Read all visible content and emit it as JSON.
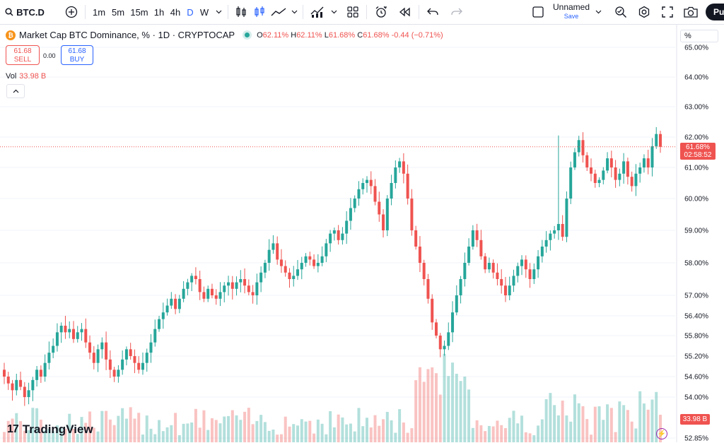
{
  "toolbar": {
    "symbol": "BTC.D",
    "intervals": [
      "1m",
      "5m",
      "15m",
      "1h",
      "4h",
      "D",
      "W"
    ],
    "active_interval": "D",
    "layout_name": "Unnamed",
    "layout_save": "Save",
    "publish_label": "Pul"
  },
  "legend": {
    "title": "Market Cap BTC Dominance, % · 1D · CRYPTOCAP",
    "open_label": "O",
    "open": "62.11%",
    "high_label": "H",
    "high": "62.11%",
    "low_label": "L",
    "low": "61.68%",
    "close_label": "C",
    "close": "61.68%",
    "change": "-0.44 (−0.71%)"
  },
  "trade": {
    "sell_price": "61.68",
    "sell_label": "SELL",
    "spread": "0.00",
    "buy_price": "61.68",
    "buy_label": "BUY"
  },
  "volume": {
    "label": "Vol",
    "value": "33.98 B"
  },
  "price_scale": {
    "mode": "%",
    "ticks": [
      "65.00%",
      "64.00%",
      "63.00%",
      "62.00%",
      "61.00%",
      "60.00%",
      "59.00%",
      "58.00%",
      "57.00%",
      "56.40%",
      "55.80%",
      "55.20%",
      "54.60%",
      "54.00%",
      "52.85%"
    ],
    "last_price": "61.68%",
    "countdown": "02:58:52"
  },
  "brand": "TradingView",
  "colors": {
    "up": "#26a69a",
    "down": "#ef5350",
    "accent": "#2962ff"
  },
  "chart_data": {
    "type": "candlestick",
    "symbol": "BTC.D",
    "timeframe": "1D",
    "last": 61.68,
    "close_series": [
      54.6,
      54.4,
      54.2,
      54.5,
      54.3,
      54.0,
      54.2,
      54.5,
      54.8,
      54.6,
      55.0,
      55.3,
      55.5,
      55.9,
      56.1,
      55.9,
      56.0,
      55.7,
      55.9,
      56.0,
      55.6,
      55.3,
      55.0,
      55.4,
      55.6,
      55.1,
      54.8,
      54.6,
      54.8,
      55.1,
      55.4,
      55.2,
      55.0,
      54.8,
      55.0,
      55.3,
      55.6,
      56.0,
      56.3,
      56.5,
      56.7,
      56.9,
      56.6,
      56.9,
      57.2,
      57.4,
      57.6,
      57.5,
      57.1,
      56.9,
      57.2,
      57.0,
      56.9,
      57.1,
      57.3,
      57.4,
      57.2,
      57.4,
      57.5,
      57.3,
      57.1,
      57.0,
      57.4,
      57.7,
      58.0,
      58.4,
      58.6,
      58.1,
      57.9,
      57.7,
      57.5,
      57.6,
      57.8,
      58.0,
      58.2,
      58.1,
      57.9,
      58.0,
      58.2,
      58.6,
      58.9,
      59.0,
      58.7,
      58.9,
      59.3,
      59.7,
      60.0,
      60.3,
      60.5,
      60.6,
      60.4,
      59.9,
      59.5,
      59.0,
      60.0,
      60.5,
      61.0,
      61.2,
      60.8,
      60.0,
      59.0,
      58.5,
      58.0,
      57.5,
      56.9,
      56.2,
      55.8,
      55.4,
      55.5,
      55.9,
      56.5,
      57.0,
      57.5,
      58.0,
      58.5,
      59.0,
      58.7,
      58.2,
      57.8,
      58.0,
      57.7,
      57.5,
      57.3,
      57.0,
      57.3,
      57.6,
      57.9,
      58.1,
      57.8,
      57.5,
      57.8,
      58.2,
      58.5,
      58.7,
      58.9,
      59.0,
      59.2,
      58.8,
      60.0,
      61.0,
      61.5,
      61.9,
      61.4,
      61.0,
      60.8,
      60.5,
      60.6,
      60.9,
      61.3,
      61.0,
      60.6,
      60.8,
      61.2,
      60.7,
      60.4,
      60.8,
      61.0,
      61.3,
      61.0,
      61.7,
      62.1,
      61.68
    ],
    "price_range": [
      52.85,
      65.0
    ],
    "grid": true
  }
}
